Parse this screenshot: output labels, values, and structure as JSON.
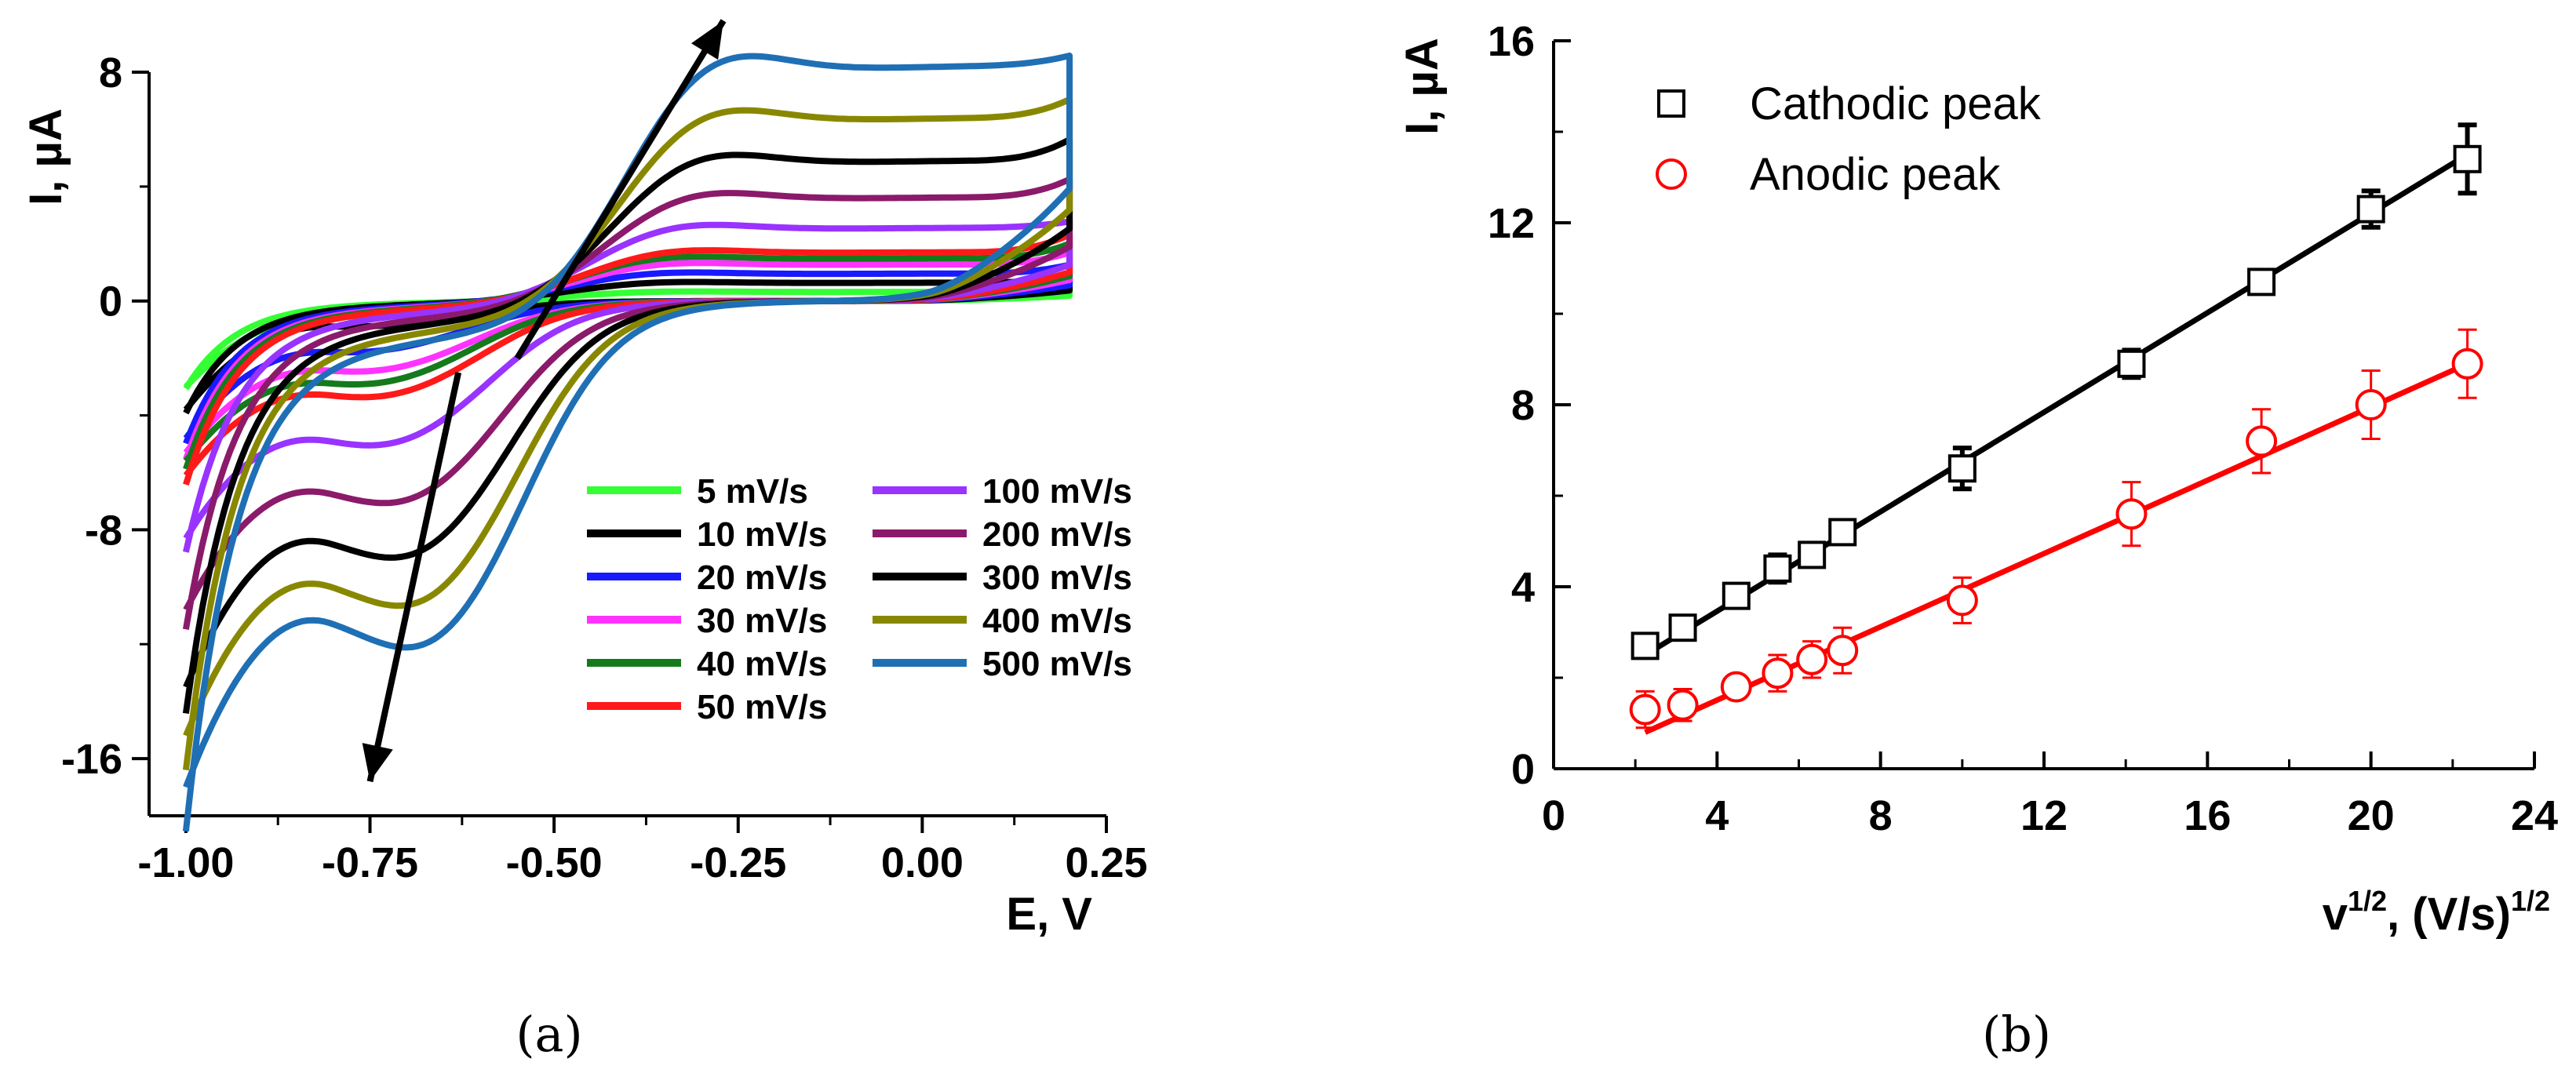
{
  "chart_data": [
    {
      "type": "line",
      "panel_label": "(a)",
      "title": "",
      "xlabel": "E, V",
      "ylabel": "I, µA",
      "xlim": [
        -1.05,
        0.25
      ],
      "ylim": [
        -18,
        8
      ],
      "xticks": [
        -1.0,
        -0.75,
        -0.5,
        -0.25,
        0.0,
        0.25
      ],
      "xtick_labels": [
        "-1.00",
        "-0.75",
        "-0.50",
        "-0.25",
        "0.00",
        "0.25"
      ],
      "yticks": [
        -16,
        -8,
        0,
        8
      ],
      "ytick_labels": [
        "-16",
        "-8",
        "0",
        "8"
      ],
      "legend_position": "bottom-right",
      "series": [
        {
          "name": "5 mV/s",
          "color": "#33ff33",
          "i_start": -3.0,
          "i_end": 0.4,
          "peak_c": -0.5,
          "peak_a": 0.3,
          "e_p": -0.55
        },
        {
          "name": "10 mV/s",
          "color": "#000000",
          "i_start": -3.8,
          "i_end": 0.8,
          "peak_c": -0.8,
          "peak_a": 0.6,
          "e_p": -0.55
        },
        {
          "name": "20 mV/s",
          "color": "#1a1aff",
          "i_start": -4.8,
          "i_end": 1.2,
          "peak_c": -1.6,
          "peak_a": 0.9,
          "e_p": -0.55
        },
        {
          "name": "30 mV/s",
          "color": "#ff33ff",
          "i_start": -5.3,
          "i_end": 1.6,
          "peak_c": -2.2,
          "peak_a": 1.2,
          "e_p": -0.54
        },
        {
          "name": "40 mV/s",
          "color": "#157a1c",
          "i_start": -5.6,
          "i_end": 1.9,
          "peak_c": -2.6,
          "peak_a": 1.4,
          "e_p": -0.54
        },
        {
          "name": "50 mV/s",
          "color": "#ff1a1a",
          "i_start": -6.1,
          "i_end": 2.2,
          "peak_c": -3.0,
          "peak_a": 1.6,
          "e_p": -0.53
        },
        {
          "name": "100 mV/s",
          "color": "#9933ff",
          "i_start": -8.3,
          "i_end": 2.6,
          "peak_c": -4.5,
          "peak_a": 2.4,
          "e_p": -0.52
        },
        {
          "name": "200 mV/s",
          "color": "#8b1a6b",
          "i_start": -10.8,
          "i_end": 4.0,
          "peak_c": -6.3,
          "peak_a": 3.4,
          "e_p": -0.5
        },
        {
          "name": "300 mV/s",
          "color": "#000000",
          "i_start": -13.5,
          "i_end": 5.3,
          "peak_c": -8.0,
          "peak_a": 4.6,
          "e_p": -0.49
        },
        {
          "name": "400 mV/s",
          "color": "#888800",
          "i_start": -15.2,
          "i_end": 6.6,
          "peak_c": -9.5,
          "peak_a": 6.0,
          "e_p": -0.48
        },
        {
          "name": "500 mV/s",
          "color": "#1f6fb5",
          "i_start": -17.0,
          "i_end": 8.0,
          "peak_c": -10.8,
          "peak_a": 7.7,
          "e_p": -0.47
        }
      ],
      "arrows": [
        {
          "from": [
            -0.55,
            -2
          ],
          "to": [
            -0.27,
            9.8
          ]
        },
        {
          "from": [
            -0.63,
            -2.5
          ],
          "to": [
            -0.75,
            -16.8
          ]
        }
      ]
    },
    {
      "type": "scatter",
      "panel_label": "(b)",
      "title": "",
      "xlabel_main": "v",
      "xlabel_sup1": "1/2",
      "xlabel_mid": ", (V/s)",
      "xlabel_sup2": "1/2",
      "ylabel": "I, µA",
      "xlim": [
        0,
        24
      ],
      "ylim": [
        0,
        16
      ],
      "xticks": [
        0,
        4,
        8,
        12,
        16,
        20,
        24
      ],
      "xtick_labels": [
        "0",
        "4",
        "8",
        "12",
        "16",
        "20",
        "24"
      ],
      "yticks": [
        0,
        4,
        8,
        12,
        16
      ],
      "ytick_labels": [
        "0",
        "4",
        "8",
        "12",
        "16"
      ],
      "legend_position": "top-left",
      "series": [
        {
          "name": "Cathodic peak",
          "marker": "square",
          "color": "#000000",
          "x": [
            2.24,
            3.16,
            4.47,
            5.48,
            6.32,
            7.07,
            10.0,
            14.14,
            17.32,
            20.0,
            22.36
          ],
          "y": [
            2.7,
            3.1,
            3.8,
            4.4,
            4.7,
            5.2,
            6.6,
            8.9,
            10.7,
            12.3,
            13.4
          ],
          "yerr": [
            0.15,
            0.15,
            0.2,
            0.3,
            0.2,
            0.2,
            0.45,
            0.3,
            0.2,
            0.4,
            0.75
          ],
          "fit": {
            "x": [
              2.24,
              22.36
            ],
            "y": [
              2.5,
              13.5
            ]
          }
        },
        {
          "name": "Anodic peak",
          "marker": "circle",
          "color": "#ff0000",
          "x": [
            2.24,
            3.16,
            4.47,
            5.48,
            6.32,
            7.07,
            10.0,
            14.14,
            17.32,
            20.0,
            22.36
          ],
          "y": [
            1.3,
            1.4,
            1.8,
            2.1,
            2.4,
            2.6,
            3.7,
            5.6,
            7.2,
            8.0,
            8.9
          ],
          "yerr": [
            0.4,
            0.35,
            0.2,
            0.4,
            0.4,
            0.5,
            0.5,
            0.7,
            0.7,
            0.75,
            0.75
          ],
          "fit": {
            "x": [
              2.24,
              22.36
            ],
            "y": [
              0.8,
              8.9
            ]
          }
        }
      ]
    }
  ]
}
